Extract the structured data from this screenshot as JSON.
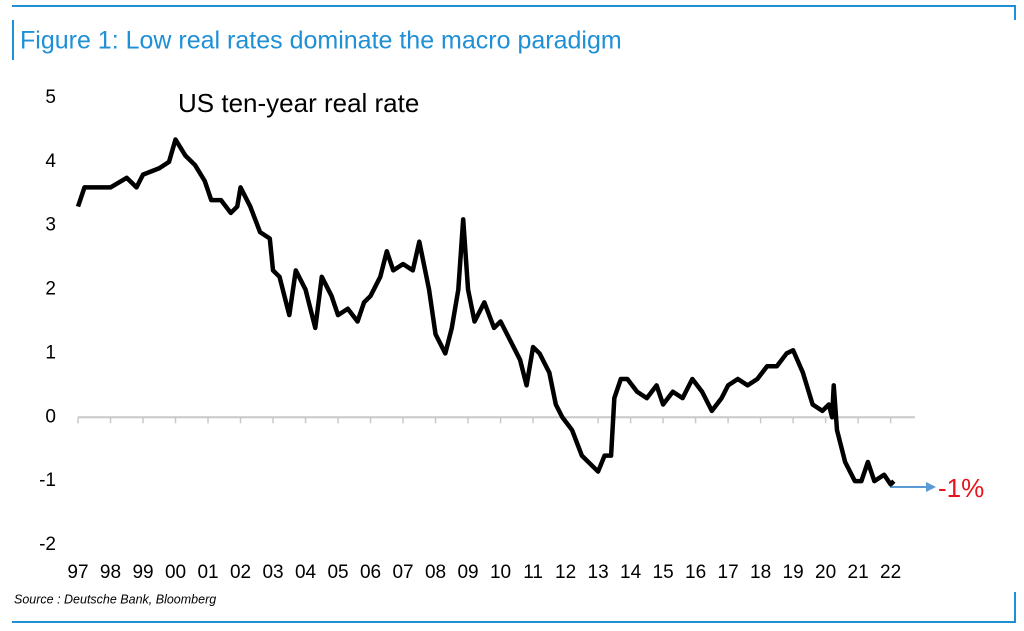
{
  "chart_data": {
    "type": "line",
    "figure_title": "Figure 1: Low real rates dominate the macro paradigm",
    "title": "US ten-year real rate",
    "source": "Source : Deutsche Bank, Bloomberg",
    "annotation": "-1%",
    "xlim": [
      1997,
      2022.75
    ],
    "xticks": [
      {
        "value": 1997,
        "label": "97"
      },
      {
        "value": 1998,
        "label": "98"
      },
      {
        "value": 1999,
        "label": "99"
      },
      {
        "value": 2000,
        "label": "00"
      },
      {
        "value": 2001,
        "label": "01"
      },
      {
        "value": 2002,
        "label": "02"
      },
      {
        "value": 2003,
        "label": "03"
      },
      {
        "value": 2004,
        "label": "04"
      },
      {
        "value": 2005,
        "label": "05"
      },
      {
        "value": 2006,
        "label": "06"
      },
      {
        "value": 2007,
        "label": "07"
      },
      {
        "value": 2008,
        "label": "08"
      },
      {
        "value": 2009,
        "label": "09"
      },
      {
        "value": 2010,
        "label": "10"
      },
      {
        "value": 2011,
        "label": "11"
      },
      {
        "value": 2012,
        "label": "12"
      },
      {
        "value": 2013,
        "label": "13"
      },
      {
        "value": 2014,
        "label": "14"
      },
      {
        "value": 2015,
        "label": "15"
      },
      {
        "value": 2016,
        "label": "16"
      },
      {
        "value": 2017,
        "label": "17"
      },
      {
        "value": 2018,
        "label": "18"
      },
      {
        "value": 2019,
        "label": "19"
      },
      {
        "value": 2020,
        "label": "20"
      },
      {
        "value": 2021,
        "label": "21"
      },
      {
        "value": 2022,
        "label": "22"
      }
    ],
    "ylim": [
      -2,
      5
    ],
    "yticks": [
      -2,
      -1,
      0,
      1,
      2,
      3,
      4,
      5
    ],
    "series": [
      {
        "name": "US ten-year real rate",
        "color": "#000000",
        "x": [
          1997.0,
          1997.2,
          1997.5,
          1998.0,
          1998.5,
          1998.8,
          1999.0,
          1999.5,
          1999.8,
          2000.0,
          2000.3,
          2000.6,
          2000.9,
          2001.1,
          2001.4,
          2001.7,
          2001.9,
          2002.0,
          2002.3,
          2002.6,
          2002.9,
          2003.0,
          2003.2,
          2003.5,
          2003.7,
          2004.0,
          2004.3,
          2004.5,
          2004.8,
          2005.0,
          2005.3,
          2005.6,
          2005.8,
          2006.0,
          2006.3,
          2006.5,
          2006.7,
          2007.0,
          2007.3,
          2007.5,
          2007.8,
          2008.0,
          2008.3,
          2008.5,
          2008.7,
          2008.85,
          2009.0,
          2009.2,
          2009.5,
          2009.8,
          2010.0,
          2010.3,
          2010.6,
          2010.8,
          2011.0,
          2011.2,
          2011.5,
          2011.7,
          2011.9,
          2012.2,
          2012.5,
          2012.8,
          2013.0,
          2013.2,
          2013.4,
          2013.5,
          2013.7,
          2013.9,
          2014.2,
          2014.5,
          2014.8,
          2015.0,
          2015.3,
          2015.6,
          2015.9,
          2016.2,
          2016.5,
          2016.8,
          2017.0,
          2017.3,
          2017.6,
          2017.9,
          2018.2,
          2018.5,
          2018.8,
          2019.0,
          2019.3,
          2019.6,
          2019.9,
          2020.1,
          2020.2,
          2020.25,
          2020.35,
          2020.6,
          2020.9,
          2021.1,
          2021.3,
          2021.5,
          2021.8,
          2022.0,
          2022.1
        ],
        "values": [
          3.3,
          3.6,
          3.6,
          3.6,
          3.75,
          3.6,
          3.8,
          3.9,
          4.0,
          4.35,
          4.1,
          3.95,
          3.7,
          3.4,
          3.4,
          3.2,
          3.3,
          3.6,
          3.3,
          2.9,
          2.8,
          2.3,
          2.2,
          1.6,
          2.3,
          2.0,
          1.4,
          2.2,
          1.9,
          1.6,
          1.7,
          1.5,
          1.8,
          1.9,
          2.2,
          2.6,
          2.3,
          2.4,
          2.3,
          2.75,
          2.0,
          1.3,
          1.0,
          1.4,
          2.0,
          3.1,
          2.0,
          1.5,
          1.8,
          1.4,
          1.5,
          1.2,
          0.9,
          0.5,
          1.1,
          1.0,
          0.7,
          0.2,
          0.0,
          -0.2,
          -0.6,
          -0.75,
          -0.85,
          -0.6,
          -0.6,
          0.3,
          0.6,
          0.6,
          0.4,
          0.3,
          0.5,
          0.2,
          0.4,
          0.3,
          0.6,
          0.4,
          0.1,
          0.3,
          0.5,
          0.6,
          0.5,
          0.6,
          0.8,
          0.8,
          1.0,
          1.05,
          0.7,
          0.2,
          0.1,
          0.2,
          0.0,
          0.5,
          -0.2,
          -0.7,
          -1.0,
          -1.0,
          -0.7,
          -1.0,
          -0.9,
          -1.05,
          -1.0
        ]
      }
    ]
  }
}
